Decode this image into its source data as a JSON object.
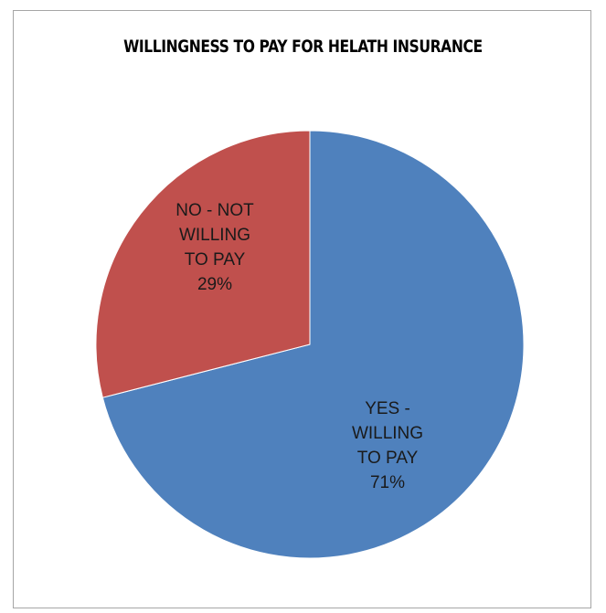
{
  "chart_data": {
    "type": "pie",
    "title": "WILLINGNESS TO PAY FOR HELATH INSURANCE",
    "slices": [
      {
        "label_lines": [
          "YES -",
          "WILLING",
          "TO PAY",
          "71%"
        ],
        "value": 71,
        "color": "#4f81bd"
      },
      {
        "label_lines": [
          "NO - NOT",
          "WILLING",
          "TO PAY",
          "29%"
        ],
        "value": 29,
        "color": "#c0504d"
      }
    ],
    "legend": "none",
    "start": "12 o'clock",
    "direction": "clockwise"
  }
}
